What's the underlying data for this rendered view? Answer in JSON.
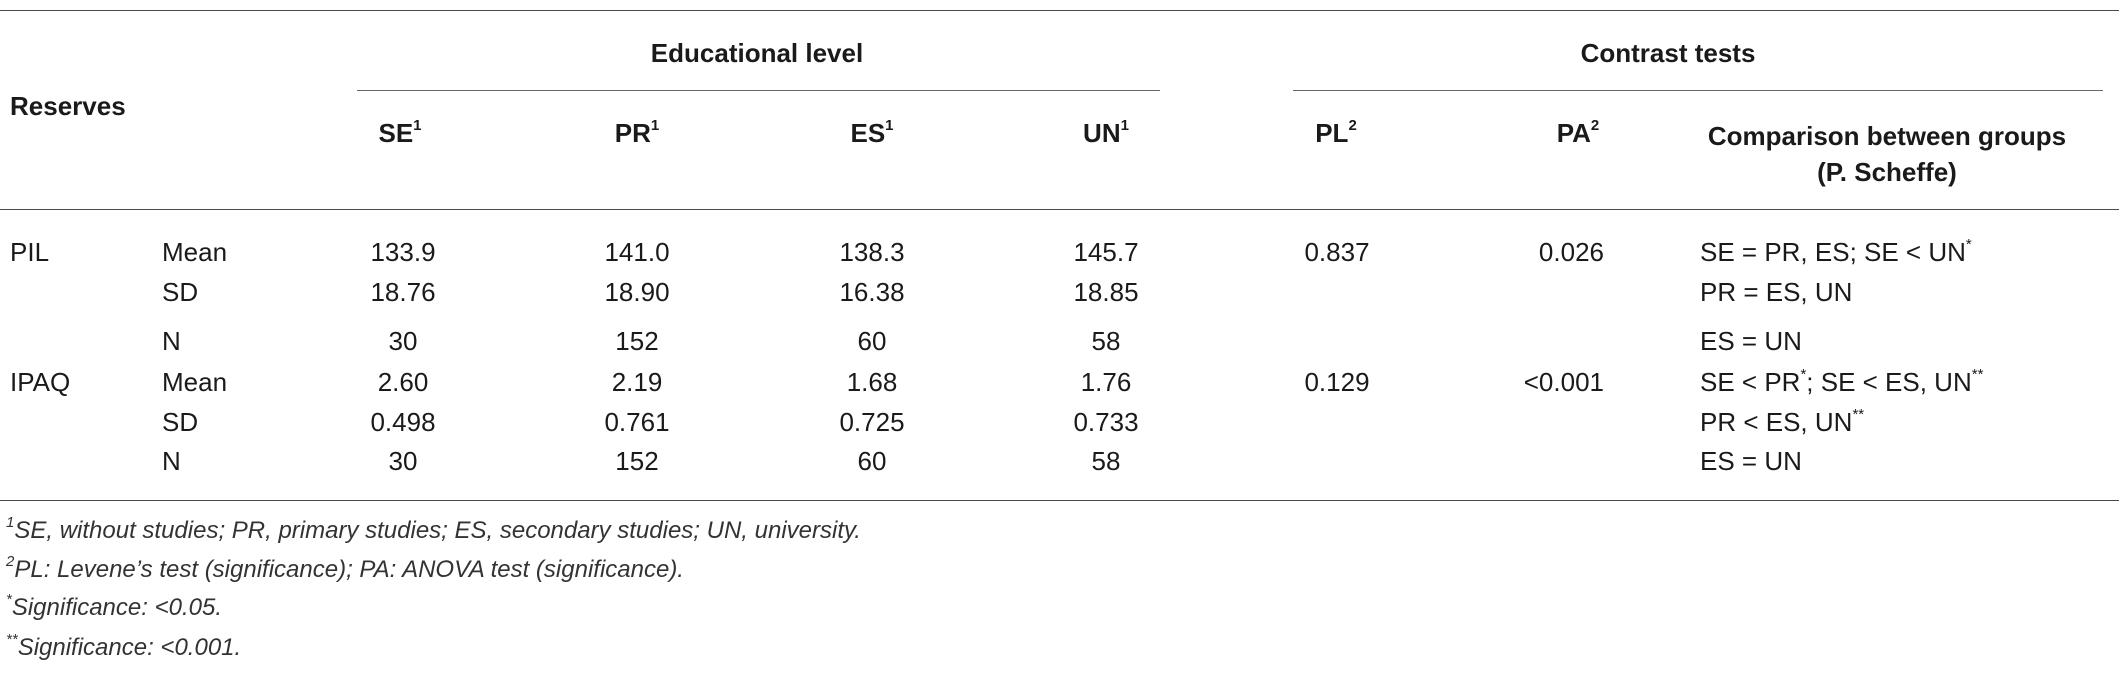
{
  "header": {
    "reserves": "Reserves",
    "educational_level": "Educational level",
    "contrast_tests": "Contrast tests",
    "cols": {
      "se": "SE",
      "se_sup": "1",
      "pr": "PR",
      "pr_sup": "1",
      "es": "ES",
      "es_sup": "1",
      "un": "UN",
      "un_sup": "1",
      "pl": "PL",
      "pl_sup": "2",
      "pa": "PA",
      "pa_sup": "2",
      "comparison_line1": "Comparison between groups",
      "comparison_line2": "(P. Scheffe)"
    }
  },
  "rows": {
    "pil": {
      "label": "PIL",
      "mean": {
        "stat": "Mean",
        "se": "133.9",
        "pr": "141.0",
        "es": "138.3",
        "un": "145.7",
        "pl": "0.837",
        "pa": "0.026"
      },
      "sd": {
        "stat": "SD",
        "se": "18.76",
        "pr": "18.90",
        "es": "16.38",
        "un": "18.85"
      },
      "n": {
        "stat": "N",
        "se": "30",
        "pr": "152",
        "es": "60",
        "un": "58"
      },
      "comparisons": {
        "c1": "SE = PR, ES; SE < UN",
        "c1_sup": "*",
        "c2": "PR = ES, UN",
        "c3": "ES = UN"
      }
    },
    "ipaq": {
      "label": "IPAQ",
      "mean": {
        "stat": "Mean",
        "se": "2.60",
        "pr": "2.19",
        "es": "1.68",
        "un": "1.76",
        "pl": "0.129",
        "pa": "<0.001"
      },
      "sd": {
        "stat": "SD",
        "se": "0.498",
        "pr": "0.761",
        "es": "0.725",
        "un": "0.733"
      },
      "n": {
        "stat": "N",
        "se": "30",
        "pr": "152",
        "es": "60",
        "un": "58"
      },
      "comparisons": {
        "c1a": "SE < PR",
        "c1a_sup": "*",
        "c1b": "; SE < ES, UN",
        "c1b_sup": "**",
        "c2": "PR < ES, UN",
        "c2_sup": "**",
        "c3": "ES = UN"
      }
    }
  },
  "footnotes": {
    "f1_sup": "1",
    "f1": "SE, without studies; PR, primary studies; ES, secondary studies; UN, university.",
    "f2_sup": "2",
    "f2": "PL: Levene’s test (significance); PA: ANOVA test (significance).",
    "f3_sup": "*",
    "f3": "Significance: <0.05.",
    "f4_sup": "**",
    "f4": "Significance: <0.001."
  }
}
